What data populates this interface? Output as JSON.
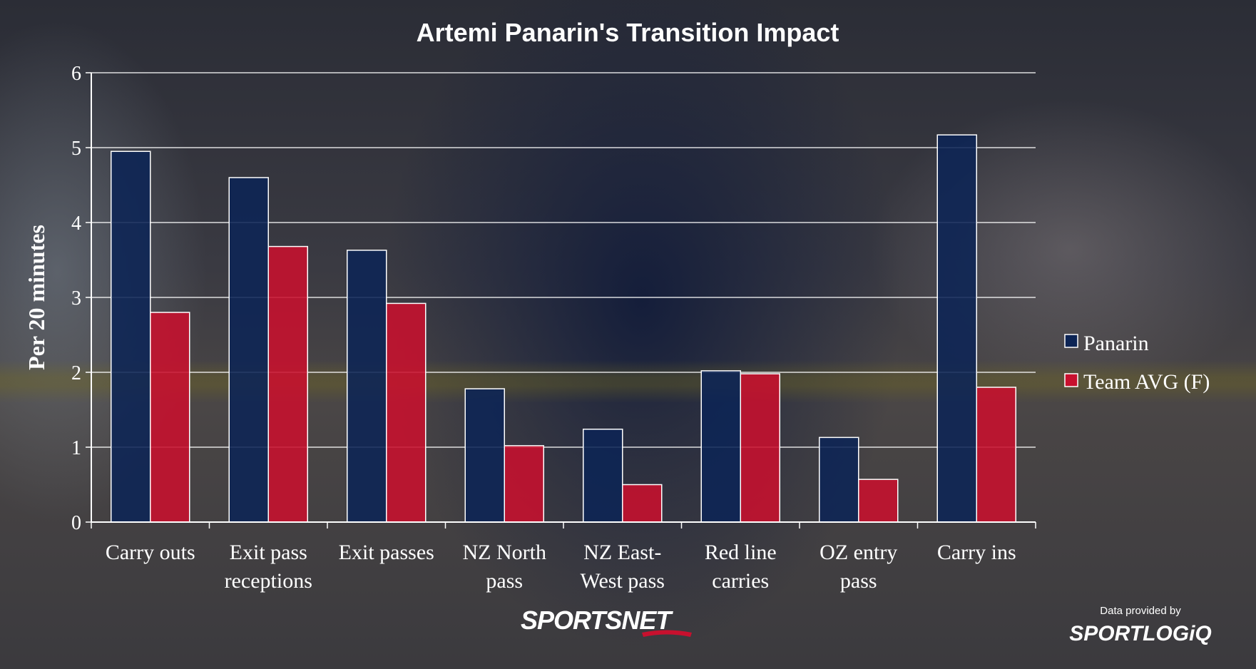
{
  "chart_data": {
    "type": "bar",
    "title": "Artemi Panarin's Transition Impact",
    "xlabel": "",
    "ylabel": "Per 20 minutes",
    "ylim": [
      0,
      6
    ],
    "yticks": [
      "0",
      "1",
      "2",
      "3",
      "4",
      "5",
      "6"
    ],
    "grid": true,
    "legend_position": "right",
    "categories": [
      [
        "Carry outs"
      ],
      [
        "Exit pass",
        "receptions"
      ],
      [
        "Exit passes"
      ],
      [
        "NZ North",
        "pass"
      ],
      [
        "NZ East-",
        "West pass"
      ],
      [
        "Red line",
        "carries"
      ],
      [
        "OZ entry",
        "pass"
      ],
      [
        "Carry ins"
      ]
    ],
    "series": [
      {
        "name": "Panarin",
        "color": "#0c2455",
        "values": [
          4.95,
          4.6,
          3.63,
          1.78,
          1.24,
          2.02,
          1.13,
          5.17
        ]
      },
      {
        "name": "Team AVG (F)",
        "color": "#c8102e",
        "values": [
          2.8,
          3.68,
          2.92,
          1.02,
          0.5,
          1.98,
          0.57,
          1.8
        ]
      }
    ]
  },
  "credits": {
    "provided_by": "Data provided by",
    "data_logo": "SPORTLOGiQ",
    "broadcaster_logo": "SPORTSNET"
  }
}
